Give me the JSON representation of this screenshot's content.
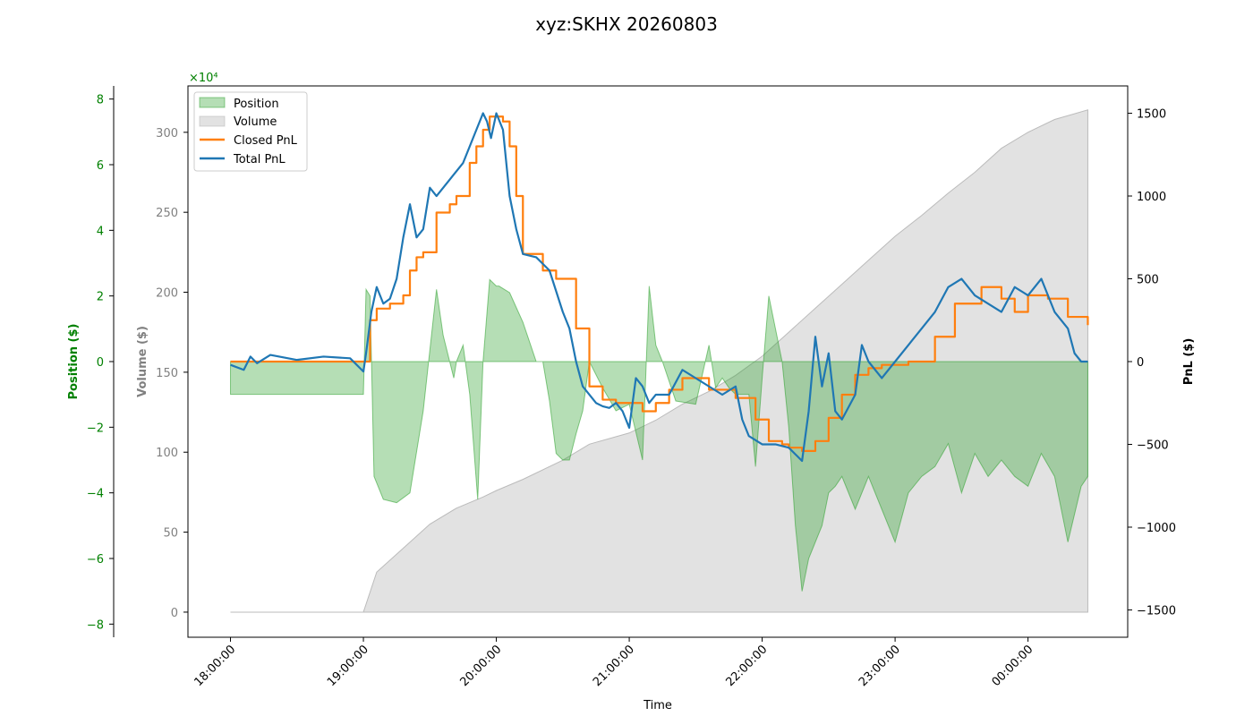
{
  "chart_data": {
    "type": "line",
    "title": "xyz:SKHX 20260803",
    "xlabel": "Time",
    "x_ticks": [
      "18:00:00",
      "19:00:00",
      "20:00:00",
      "21:00:00",
      "22:00:00",
      "23:00:00",
      "00:00:00"
    ],
    "grid": false,
    "legend_position": "upper-left",
    "colors": {
      "position": "#2ca02c",
      "volume": "#a0a0a0",
      "closed_pnl": "#ff7f0e",
      "total_pnl": "#1f77b4",
      "position_axis": "#008000",
      "volume_axis": "#808080",
      "pnl_axis": "#000000"
    },
    "axes": {
      "position": {
        "label": "Position ($)",
        "multiplier_label": "×10⁴",
        "range": [
          -8.4,
          8.4
        ],
        "ticks": [
          -8,
          -6,
          -4,
          -2,
          0,
          2,
          4,
          6,
          8
        ],
        "tick_labels": [
          "−8",
          "−6",
          "−4",
          "−2",
          "0",
          "2",
          "4",
          "6",
          "8"
        ]
      },
      "volume": {
        "label": "Volume ($)",
        "range": [
          -15.7,
          329
        ],
        "ticks": [
          0,
          50,
          100,
          150,
          200,
          250,
          300
        ],
        "tick_labels": [
          "0",
          "50",
          "100",
          "150",
          "200",
          "250",
          "300"
        ]
      },
      "pnl": {
        "label": "PnL ($)",
        "range": [
          -1665,
          1665
        ],
        "ticks": [
          -1500,
          -1000,
          -500,
          0,
          500,
          1000,
          1500
        ],
        "tick_labels": [
          "−1500",
          "−1000",
          "−500",
          "0",
          "500",
          "1000",
          "1500"
        ]
      }
    },
    "x_range": [
      -0.32,
      6.75
    ],
    "series": [
      {
        "name": "Position",
        "kind": "area",
        "axis": "position",
        "x": [
          0,
          1.0,
          1.02,
          1.05,
          1.08,
          1.15,
          1.25,
          1.35,
          1.45,
          1.55,
          1.6,
          1.68,
          1.7,
          1.75,
          1.8,
          1.86,
          1.9,
          1.95,
          2.0,
          2.02,
          2.1,
          2.2,
          2.3,
          2.35,
          2.4,
          2.45,
          2.5,
          2.55,
          2.6,
          2.65,
          2.7,
          2.8,
          2.9,
          3.0,
          3.1,
          3.15,
          3.2,
          3.25,
          3.35,
          3.5,
          3.6,
          3.65,
          3.7,
          3.75,
          3.8,
          3.9,
          3.95,
          4.0,
          4.05,
          4.1,
          4.15,
          4.2,
          4.25,
          4.3,
          4.35,
          4.4,
          4.45,
          4.5,
          4.55,
          4.6,
          4.7,
          4.8,
          4.9,
          5.0,
          5.1,
          5.2,
          5.3,
          5.4,
          5.5,
          5.6,
          5.7,
          5.8,
          5.9,
          6.0,
          6.1,
          6.2,
          6.3,
          6.4,
          6.45
        ],
        "values": [
          -1.0,
          -1.0,
          2.2,
          2.0,
          -3.5,
          -4.2,
          -4.3,
          -4.0,
          -1.5,
          2.2,
          0.8,
          -0.5,
          0,
          0.5,
          -1.0,
          -4.2,
          0,
          2.5,
          2.3,
          2.3,
          2.1,
          1.2,
          0,
          0,
          -1.2,
          -2.8,
          -3.0,
          -3.0,
          -2.2,
          -1.5,
          0,
          -0.8,
          -1.5,
          -1.3,
          -3.0,
          2.3,
          0.5,
          0,
          -1.2,
          -1.3,
          0.5,
          -0.8,
          -0.5,
          -0.8,
          -1.0,
          -1.0,
          -3.2,
          -0.5,
          2.0,
          1.0,
          0,
          -2.0,
          -5.0,
          -7.0,
          -6.0,
          -5.5,
          -5.0,
          -4.0,
          -3.8,
          -3.5,
          -4.5,
          -3.5,
          -4.5,
          -5.5,
          -4.0,
          -3.5,
          -3.2,
          -2.5,
          -4.0,
          -2.8,
          -3.5,
          -3.0,
          -3.5,
          -3.8,
          -2.8,
          -3.5,
          -5.5,
          -3.8,
          -3.5
        ]
      },
      {
        "name": "Volume",
        "kind": "area",
        "axis": "volume",
        "x": [
          0,
          1.0,
          1.02,
          1.1,
          1.3,
          1.5,
          1.7,
          1.9,
          2.0,
          2.2,
          2.5,
          2.7,
          3.0,
          3.2,
          3.4,
          3.6,
          3.8,
          4.0,
          4.2,
          4.4,
          4.6,
          4.8,
          5.0,
          5.2,
          5.4,
          5.6,
          5.8,
          6.0,
          6.2,
          6.45
        ],
        "values": [
          0,
          0,
          5,
          25,
          40,
          55,
          65,
          72,
          76,
          83,
          95,
          105,
          112,
          120,
          130,
          138,
          148,
          160,
          175,
          190,
          205,
          220,
          235,
          248,
          262,
          275,
          290,
          300,
          308,
          314
        ]
      },
      {
        "name": "Closed PnL",
        "kind": "step",
        "axis": "pnl",
        "x": [
          0,
          1.0,
          1.05,
          1.1,
          1.2,
          1.3,
          1.35,
          1.4,
          1.45,
          1.55,
          1.65,
          1.7,
          1.8,
          1.85,
          1.9,
          1.95,
          2.05,
          2.1,
          2.15,
          2.2,
          2.35,
          2.45,
          2.6,
          2.7,
          2.8,
          2.9,
          3.1,
          3.2,
          3.3,
          3.4,
          3.6,
          3.8,
          3.95,
          4.05,
          4.15,
          4.2,
          4.3,
          4.4,
          4.5,
          4.6,
          4.7,
          4.8,
          4.9,
          5.1,
          5.3,
          5.45,
          5.65,
          5.8,
          5.9,
          6.0,
          6.15,
          6.3,
          6.45
        ],
        "values": [
          0,
          0,
          250,
          320,
          350,
          400,
          550,
          630,
          660,
          900,
          950,
          1000,
          1200,
          1300,
          1400,
          1480,
          1450,
          1300,
          1000,
          650,
          550,
          500,
          200,
          -150,
          -230,
          -250,
          -300,
          -250,
          -170,
          -100,
          -170,
          -220,
          -350,
          -480,
          -500,
          -520,
          -540,
          -480,
          -340,
          -200,
          -80,
          -40,
          -20,
          0,
          150,
          350,
          450,
          380,
          300,
          400,
          380,
          270,
          220
        ]
      },
      {
        "name": "Total PnL",
        "kind": "line",
        "axis": "pnl",
        "x": [
          0,
          0.1,
          0.15,
          0.2,
          0.3,
          0.5,
          0.7,
          0.9,
          1.0,
          1.02,
          1.06,
          1.1,
          1.15,
          1.2,
          1.25,
          1.3,
          1.35,
          1.4,
          1.45,
          1.5,
          1.55,
          1.6,
          1.65,
          1.7,
          1.75,
          1.8,
          1.85,
          1.9,
          1.93,
          1.96,
          2.0,
          2.05,
          2.1,
          2.15,
          2.2,
          2.3,
          2.4,
          2.5,
          2.55,
          2.6,
          2.65,
          2.7,
          2.75,
          2.8,
          2.85,
          2.9,
          2.95,
          3.0,
          3.05,
          3.1,
          3.15,
          3.2,
          3.3,
          3.4,
          3.5,
          3.6,
          3.7,
          3.8,
          3.85,
          3.9,
          4.0,
          4.1,
          4.2,
          4.3,
          4.35,
          4.4,
          4.45,
          4.5,
          4.55,
          4.6,
          4.7,
          4.75,
          4.8,
          4.9,
          5.0,
          5.1,
          5.2,
          5.3,
          5.4,
          5.5,
          5.6,
          5.7,
          5.8,
          5.9,
          6.0,
          6.1,
          6.2,
          6.3,
          6.35,
          6.4,
          6.45
        ],
        "values": [
          -20,
          -50,
          30,
          -10,
          40,
          10,
          30,
          20,
          -60,
          50,
          300,
          450,
          350,
          380,
          500,
          750,
          950,
          750,
          800,
          1050,
          1000,
          1050,
          1100,
          1150,
          1200,
          1300,
          1400,
          1500,
          1450,
          1350,
          1500,
          1400,
          1000,
          800,
          650,
          630,
          550,
          300,
          200,
          0,
          -150,
          -200,
          -250,
          -270,
          -280,
          -250,
          -300,
          -400,
          -100,
          -150,
          -250,
          -200,
          -200,
          -50,
          -100,
          -150,
          -200,
          -150,
          -350,
          -450,
          -500,
          -500,
          -520,
          -600,
          -300,
          150,
          -150,
          50,
          -300,
          -350,
          -200,
          100,
          0,
          -100,
          0,
          100,
          200,
          300,
          450,
          500,
          400,
          350,
          300,
          450,
          400,
          500,
          300,
          200,
          50,
          0,
          0
        ]
      }
    ]
  }
}
